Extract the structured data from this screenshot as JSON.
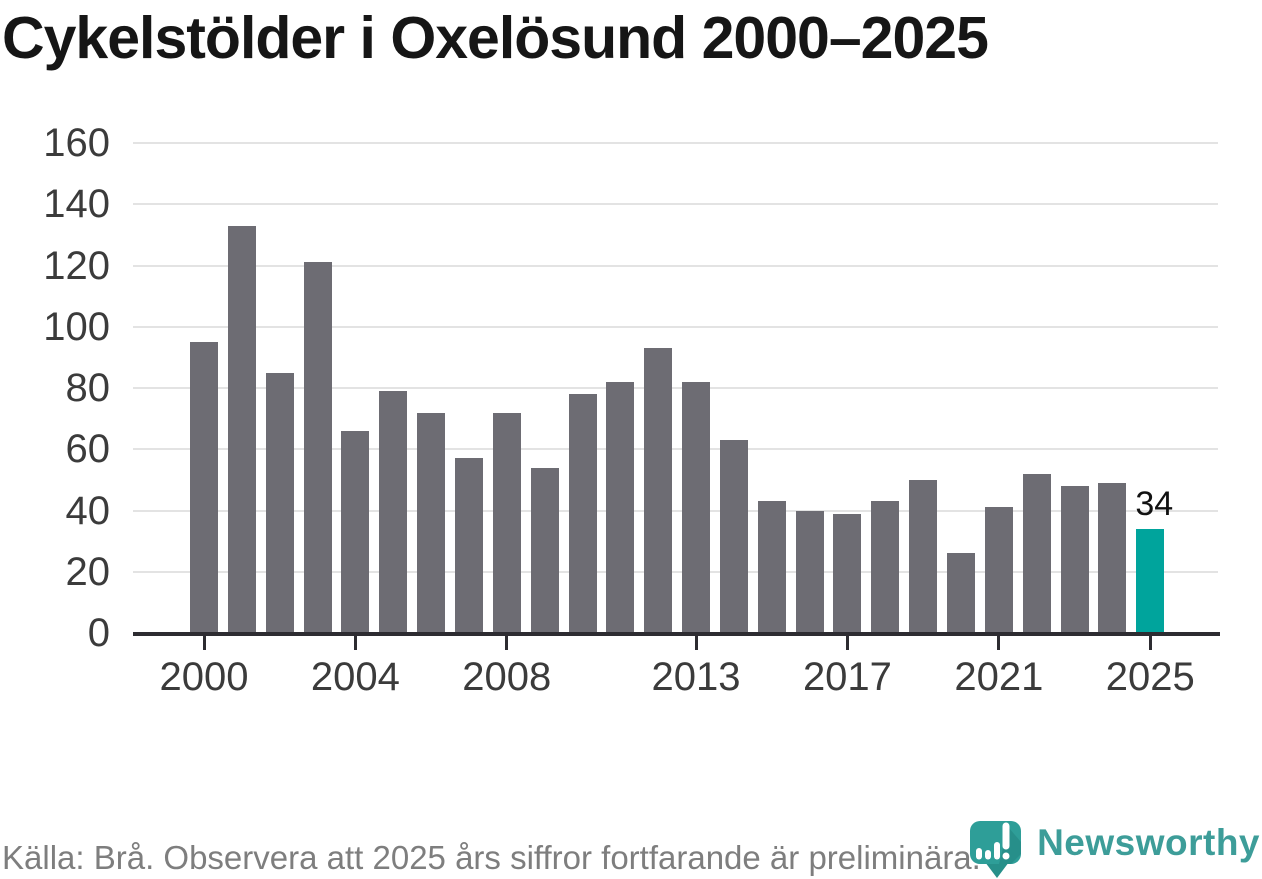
{
  "title": "Cykelstölder i Oxelösund 2000–2025",
  "chart_data": {
    "type": "bar",
    "title": "Cykelstölder i Oxelösund 2000–2025",
    "x": [
      2000,
      2001,
      2002,
      2003,
      2004,
      2005,
      2006,
      2007,
      2008,
      2009,
      2010,
      2011,
      2012,
      2013,
      2014,
      2015,
      2016,
      2017,
      2018,
      2019,
      2020,
      2021,
      2022,
      2023,
      2024,
      2025
    ],
    "values": [
      95,
      133,
      85,
      121,
      66,
      79,
      72,
      57,
      72,
      54,
      78,
      82,
      93,
      82,
      63,
      43,
      40,
      39,
      43,
      50,
      26,
      41,
      52,
      48,
      49,
      34
    ],
    "highlight_year": 2025,
    "highlight_value_label": "34",
    "x_tick_years": [
      2000,
      2004,
      2008,
      2013,
      2017,
      2021,
      2025
    ],
    "x_tick_labels": [
      "2000",
      "2004",
      "2008",
      "2013",
      "2017",
      "2021",
      "2025"
    ],
    "y_ticks": [
      0,
      20,
      40,
      60,
      80,
      100,
      120,
      140,
      160
    ],
    "y_tick_labels": [
      "0",
      "20",
      "40",
      "60",
      "80",
      "100",
      "120",
      "140",
      "160"
    ],
    "ylim": [
      0,
      160
    ],
    "grid": "horizontal",
    "legend": "none",
    "bar_color": "#6d6c73",
    "highlight_color": "#00a49c"
  },
  "footer": {
    "source_text": "Källa: Brå. Observera att 2025 års siffror fortfarande är preliminära."
  },
  "branding": {
    "name": "Newsworthy",
    "color": "#3d9d99",
    "icon": "newsworthy-pin-barchart-icon"
  }
}
